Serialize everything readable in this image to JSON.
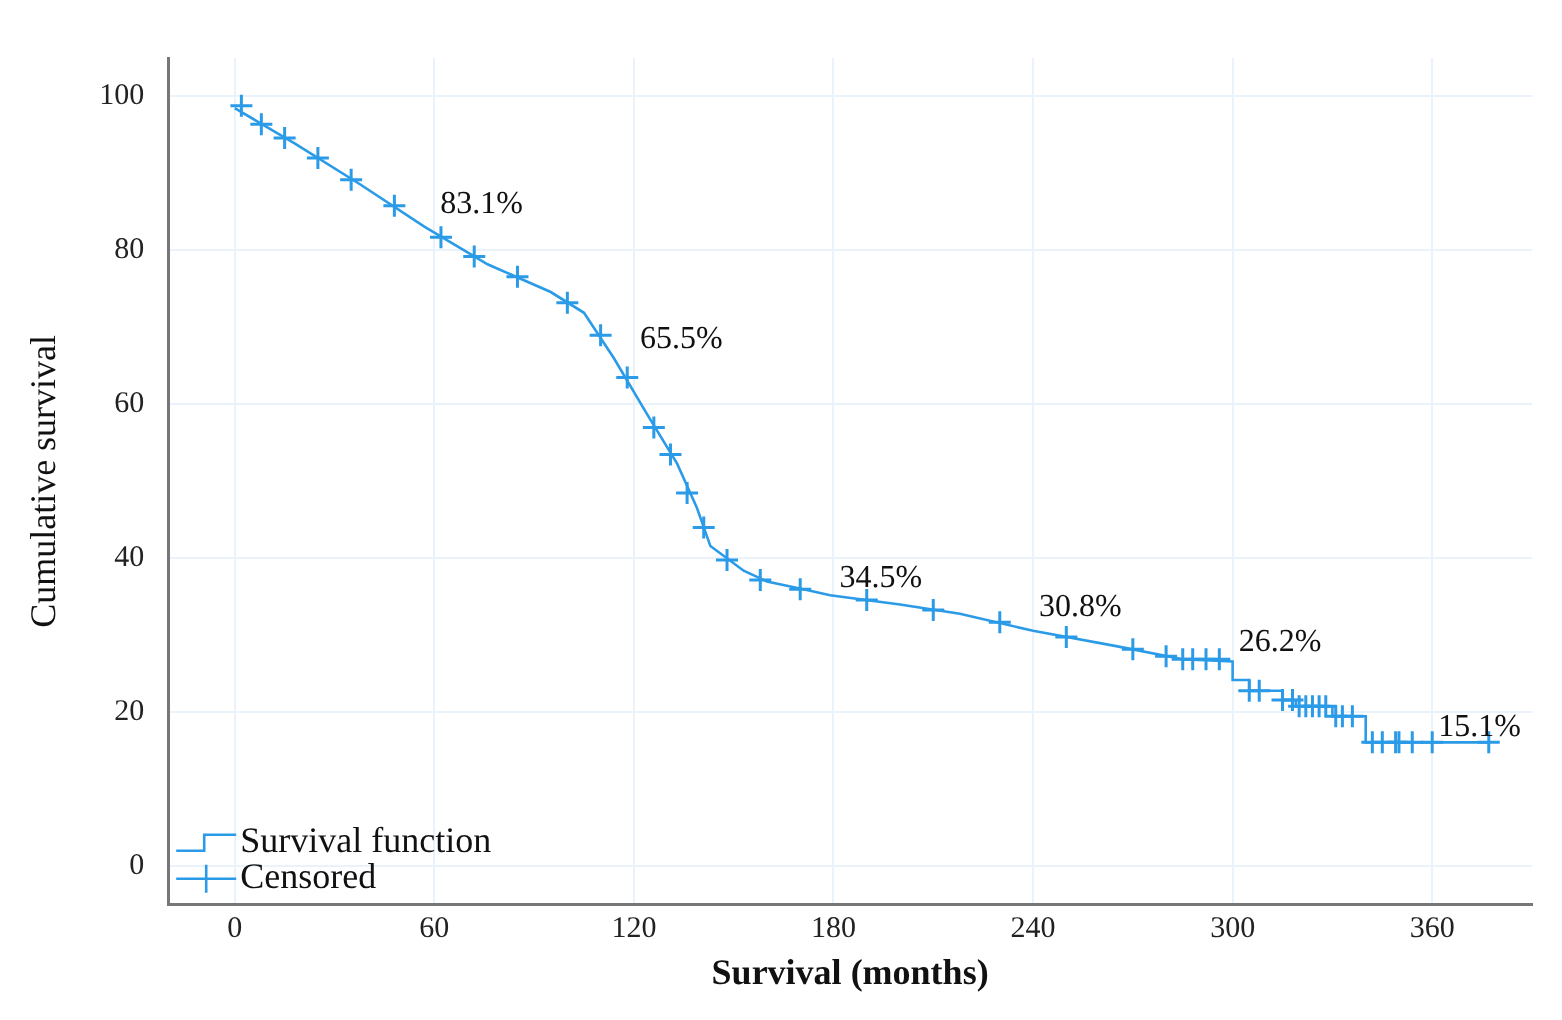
{
  "chart_data": {
    "type": "line",
    "xlabel": "Survival (months)",
    "ylabel": "Cumulative survival",
    "xlim": [
      -20,
      390
    ],
    "ylim": [
      -5,
      105
    ],
    "xticks": [
      0,
      60,
      120,
      180,
      240,
      300,
      360
    ],
    "yticks": [
      0,
      20,
      40,
      60,
      80,
      100
    ],
    "grid": true,
    "legend": "bottom left",
    "series": [
      {
        "name": "Survival function",
        "color": "#2b9be8",
        "x": [
          0,
          18,
          38,
          57,
          76,
          95,
          105,
          114,
          124,
          133,
          139,
          143,
          153,
          160,
          172,
          179,
          200,
          218,
          240,
          265,
          285,
          300,
          300,
          305,
          305,
          315,
          315,
          319,
          319,
          330,
          330,
          340,
          340,
          377
        ],
        "values": [
          98.5,
          93.9,
          88.5,
          83.1,
          78.2,
          74.6,
          71.9,
          66,
          58.7,
          52.3,
          46.5,
          41.6,
          38.4,
          37,
          35.9,
          35.2,
          34,
          32.8,
          30.6,
          28.6,
          26.9,
          26.6,
          24.2,
          24.2,
          22.8,
          22.8,
          21.6,
          21.6,
          20.8,
          20.8,
          19.5,
          19.5,
          16.1,
          16.1
        ]
      },
      {
        "name": "Censored",
        "type": "scatter",
        "marker": "cross",
        "color": "#2b9be8",
        "x": [
          2,
          8,
          15,
          25,
          35,
          48,
          62,
          72,
          85,
          100,
          110,
          118,
          126,
          131,
          136,
          141,
          148,
          158,
          170,
          190,
          210,
          230,
          250,
          270,
          280,
          285,
          288,
          292,
          296,
          305,
          308,
          315,
          318,
          320,
          322,
          324,
          326,
          328,
          331,
          333,
          336,
          342,
          345,
          349,
          350,
          354,
          360,
          377
        ],
        "values": [
          98.8,
          96.4,
          94.6,
          92,
          89.2,
          85.8,
          81.7,
          79.2,
          76.6,
          73.2,
          69,
          63.5,
          57,
          53.5,
          48.5,
          44,
          39.8,
          37.2,
          36,
          34.6,
          33.3,
          31.7,
          29.8,
          28.2,
          27.3,
          26.9,
          26.9,
          26.9,
          26.9,
          22.8,
          22.8,
          21.6,
          21.6,
          20.8,
          20.8,
          20.8,
          20.8,
          20.8,
          19.5,
          19.5,
          19.5,
          16.1,
          16.1,
          16.1,
          16.1,
          16.1,
          16.1,
          16.1
        ]
      }
    ],
    "annotations": [
      {
        "text": "83.1%",
        "x": 60,
        "y": 83.1
      },
      {
        "text": "65.5%",
        "x": 120,
        "y": 65.5
      },
      {
        "text": "34.5%",
        "x": 180,
        "y": 34.5
      },
      {
        "text": "30.8%",
        "x": 240,
        "y": 30.8
      },
      {
        "text": "26.2%",
        "x": 300,
        "y": 26.2
      },
      {
        "text": "15.1%",
        "x": 360,
        "y": 15.1
      }
    ]
  }
}
